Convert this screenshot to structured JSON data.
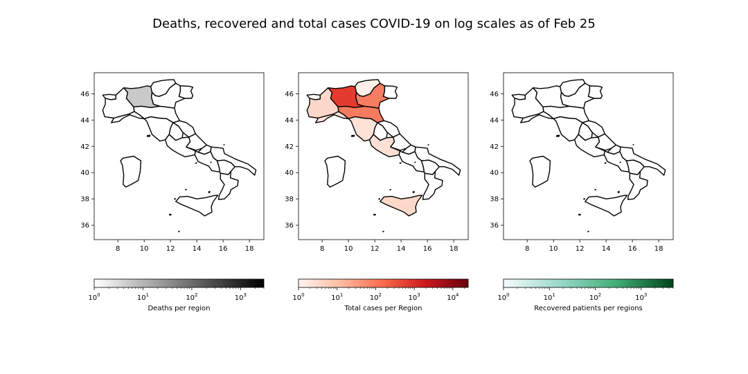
{
  "figure": {
    "title": "Deaths, recovered and total cases COVID-19 on log scales as of Feb 25"
  },
  "chart_data": [
    {
      "type": "map",
      "panel": "deaths",
      "xlim": [
        6.2,
        19.1
      ],
      "ylim": [
        34.9,
        47.6
      ],
      "x_ticks": [
        8,
        10,
        12,
        14,
        16,
        18
      ],
      "y_ticks": [
        36,
        38,
        40,
        42,
        44,
        46
      ],
      "highlighted_regions": [
        {
          "name": "Lombardia",
          "fill": "#c9c9c9"
        }
      ],
      "colorbar": {
        "label": "Deaths per region",
        "scale": "log",
        "range": [
          1,
          3000
        ],
        "ticks": [
          "10^0",
          "10^1",
          "10^2",
          "10^3"
        ],
        "tick_values": [
          1,
          10,
          100,
          1000
        ],
        "colors": [
          "#ffffff",
          "#000000"
        ]
      }
    },
    {
      "type": "map",
      "panel": "total cases",
      "xlim": [
        6.2,
        19.1
      ],
      "ylim": [
        34.9,
        47.6
      ],
      "x_ticks": [
        8,
        10,
        12,
        14,
        16,
        18
      ],
      "y_ticks": [
        36,
        38,
        40,
        42,
        44,
        46
      ],
      "highlighted_regions": [
        {
          "name": "Lombardia",
          "fill": "#e53a2e"
        },
        {
          "name": "Veneto",
          "fill": "#f77d62"
        },
        {
          "name": "Emilia-Romagna",
          "fill": "#f57b5f"
        },
        {
          "name": "Piemonte",
          "fill": "#fdd8ca"
        },
        {
          "name": "Toscana",
          "fill": "#fee2d7"
        },
        {
          "name": "Lazio",
          "fill": "#fde0d3"
        },
        {
          "name": "Sicilia",
          "fill": "#fcd8c8"
        },
        {
          "name": "Liguria",
          "fill": "#fee6dd"
        },
        {
          "name": "Trentino-Alto Adige",
          "fill": "#fff0ea"
        }
      ],
      "colorbar": {
        "label": "Total cases per Region",
        "scale": "log",
        "range": [
          1,
          25000
        ],
        "ticks": [
          "10^0",
          "10^1",
          "10^2",
          "10^3",
          "10^4"
        ],
        "tick_values": [
          1,
          10,
          100,
          1000,
          10000
        ],
        "colors": [
          "#fff5f0",
          "#fcbba1",
          "#fb6a4a",
          "#cb181d",
          "#67000d"
        ]
      }
    },
    {
      "type": "map",
      "panel": "recovered",
      "xlim": [
        6.2,
        19.1
      ],
      "ylim": [
        34.9,
        47.6
      ],
      "x_ticks": [
        8,
        10,
        12,
        14,
        16,
        18
      ],
      "y_ticks": [
        36,
        38,
        40,
        42,
        44,
        46
      ],
      "highlighted_regions": [],
      "colorbar": {
        "label": "Recovered patients per regions",
        "scale": "log",
        "range": [
          1,
          5000
        ],
        "ticks": [
          "10^0",
          "10^1",
          "10^2",
          "10^3"
        ],
        "tick_values": [
          1,
          10,
          100,
          1000
        ],
        "colors": [
          "#f7fcfd",
          "#99d8c9",
          "#41ae76",
          "#00441b"
        ]
      }
    }
  ]
}
